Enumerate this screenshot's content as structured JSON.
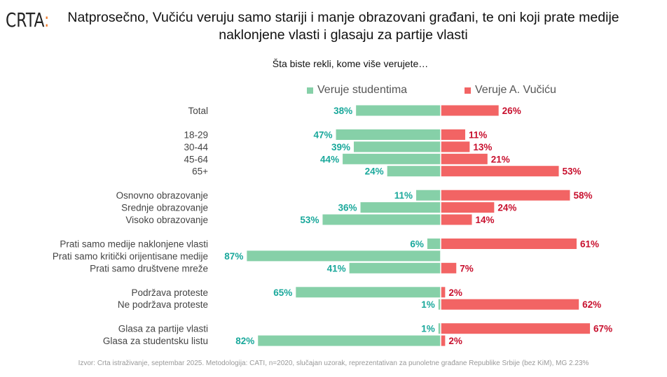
{
  "logo": {
    "text": "CRTA",
    "colon": ":"
  },
  "colors": {
    "studenti": "#86d0a8",
    "studenti_label": "#1aa89b",
    "vucic": "#f26464",
    "vucic_label": "#c8102e"
  },
  "chart_data": {
    "type": "bar",
    "title": "Natprosečno, Vučiću veruju samo stariji i manje obrazovani građani, te oni koji prate medije naklonjene vlasti i glasaju za partije vlasti",
    "subtitle": "Šta biste rekli, kome više verujete…",
    "legend": [
      "Veruje studentima",
      "Veruje A. Vučiću"
    ],
    "legend_placement": "top",
    "xlim": [
      0,
      100
    ],
    "categories": [
      "Total",
      "18-29",
      "30-44",
      "45-64",
      "65+",
      "Osnovno obrazovanje",
      "Srednje obrazovanje",
      "Visoko obrazovanje",
      "Prati samo medije naklonjene vlasti",
      "Prati samo kritički orijentisane medije",
      "Prati samo društvene mreže",
      "Podržava proteste",
      "Ne podržava proteste",
      "Glasa za partije vlasti",
      "Glasa za studentsku listu"
    ],
    "groups": [
      0,
      1,
      1,
      1,
      1,
      2,
      2,
      2,
      3,
      3,
      3,
      4,
      4,
      5,
      5
    ],
    "series": [
      {
        "name": "Veruje studentima",
        "values": [
          38,
          47,
          39,
          44,
          24,
          11,
          36,
          53,
          6,
          87,
          41,
          65,
          1,
          1,
          82
        ]
      },
      {
        "name": "Veruje A. Vučiću",
        "values": [
          26,
          11,
          13,
          21,
          53,
          58,
          24,
          14,
          61,
          null,
          7,
          2,
          62,
          67,
          2
        ]
      }
    ]
  },
  "footer": "Izvor: Crta istraživanje, septembar 2025. Metodologija: CATI, n=2020, slučajan uzorak, reprezentativan za punoletne građane Republike Srbije (bez KiM), MG 2.23%"
}
